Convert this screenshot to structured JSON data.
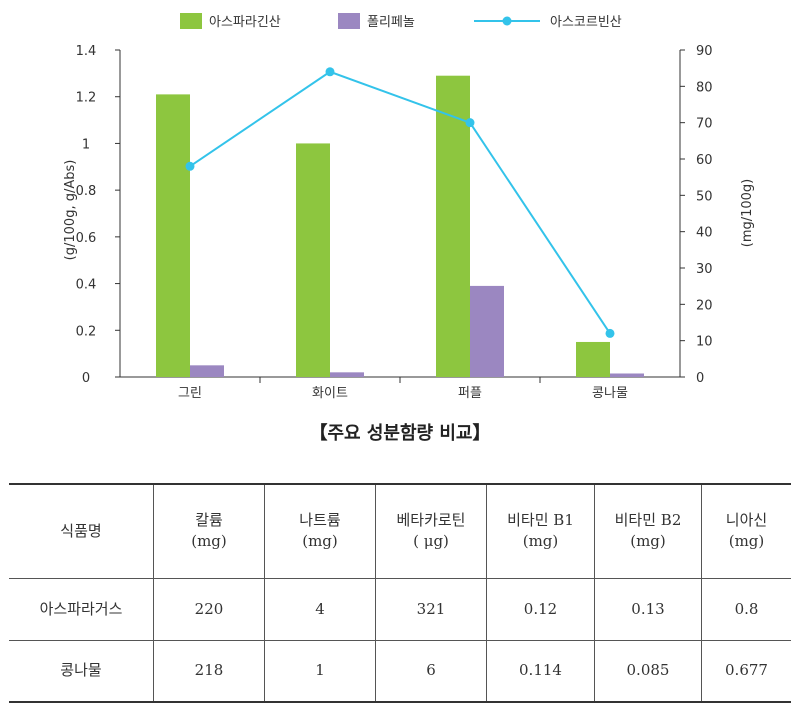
{
  "chart_data": {
    "type": "bar+line",
    "categories": [
      "그린",
      "화이트",
      "퍼플",
      "콩나물"
    ],
    "series": [
      {
        "name": "아스파라긴산",
        "type": "bar",
        "axis": "left",
        "color": "#8dc63f",
        "values": [
          1.21,
          1.0,
          1.29,
          0.15
        ]
      },
      {
        "name": "폴리페놀",
        "type": "bar",
        "axis": "left",
        "color": "#9b87c1",
        "values": [
          0.05,
          0.02,
          0.39,
          0.015
        ]
      },
      {
        "name": "아스코르빈산",
        "type": "line",
        "axis": "right",
        "color": "#33c3ea",
        "values": [
          58,
          84,
          70,
          12
        ]
      }
    ],
    "y_left": {
      "label": "(g/100g, g/Abs)",
      "min": 0,
      "max": 1.4,
      "ticks": [
        0,
        0.2,
        0.4,
        0.6,
        0.8,
        1,
        1.2,
        1.4
      ],
      "tick_labels": [
        "0",
        "0.2",
        "0.4",
        "0.6",
        "0.8",
        "1",
        "1.2",
        "1.4"
      ]
    },
    "y_right": {
      "label": "(mg/100g)",
      "min": 0,
      "max": 90,
      "ticks": [
        0,
        10,
        20,
        30,
        40,
        50,
        60,
        70,
        80,
        90
      ],
      "tick_labels": [
        "0",
        "10",
        "20",
        "30",
        "40",
        "50",
        "60",
        "70",
        "80",
        "90"
      ]
    },
    "legend_position": "top",
    "grid": false
  },
  "caption": "【주요 성분함량 비교】",
  "table": {
    "headers": [
      {
        "name": "식품명",
        "unit": ""
      },
      {
        "name": "칼륨",
        "unit": "(mg)"
      },
      {
        "name": "나트륨",
        "unit": "(mg)"
      },
      {
        "name": "베타카로틴",
        "unit": "( μg)"
      },
      {
        "name": "비타민 B1",
        "unit": "(mg)"
      },
      {
        "name": "비타민 B2",
        "unit": "(mg)"
      },
      {
        "name": "니아신",
        "unit": "(mg)"
      }
    ],
    "rows": [
      [
        "아스파라거스",
        "220",
        "4",
        "321",
        "0.12",
        "0.13",
        "0.8"
      ],
      [
        "콩나물",
        "218",
        "1",
        "6",
        "0.114",
        "0.085",
        "0.677"
      ]
    ]
  }
}
